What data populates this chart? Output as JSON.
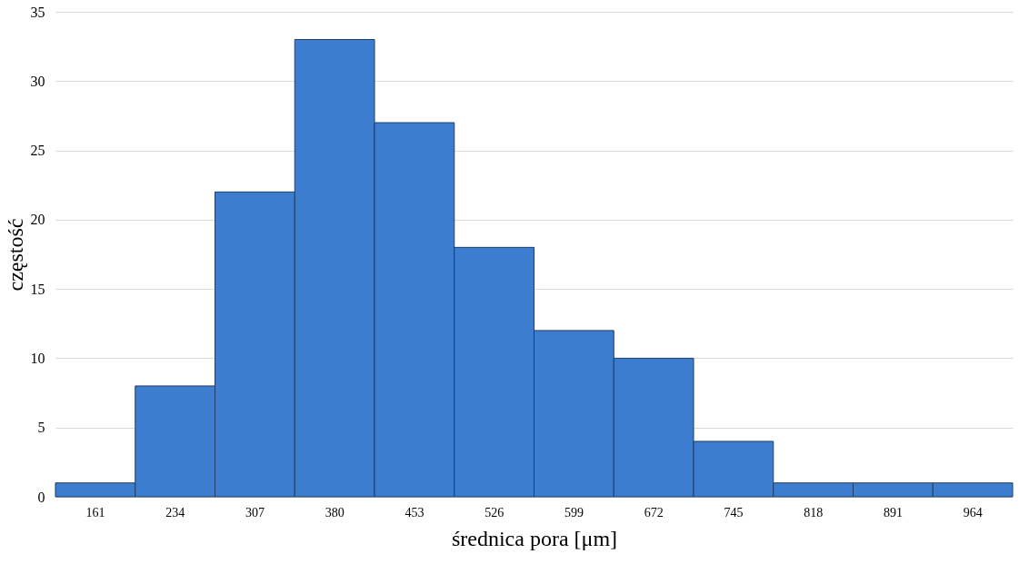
{
  "chart_data": {
    "type": "bar",
    "xlabel": "średnica pora [μm]",
    "ylabel": "częstość",
    "categories": [
      "161",
      "234",
      "307",
      "380",
      "453",
      "526",
      "599",
      "672",
      "745",
      "818",
      "891",
      "964"
    ],
    "values": [
      1,
      8,
      22,
      33,
      27,
      18,
      12,
      10,
      4,
      1,
      1,
      1
    ],
    "color": "#3c7dd0",
    "ylim": [
      0,
      35
    ],
    "yticks": [
      0,
      5,
      10,
      15,
      20,
      25,
      30,
      35
    ],
    "grid": "y"
  }
}
